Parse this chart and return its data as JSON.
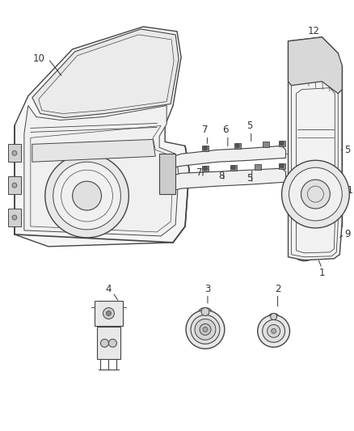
{
  "bg_color": "#ffffff",
  "line_color": "#444444",
  "label_color": "#333333",
  "fig_width": 4.38,
  "fig_height": 5.33,
  "dpi": 100,
  "label_fontsize": 8.5
}
